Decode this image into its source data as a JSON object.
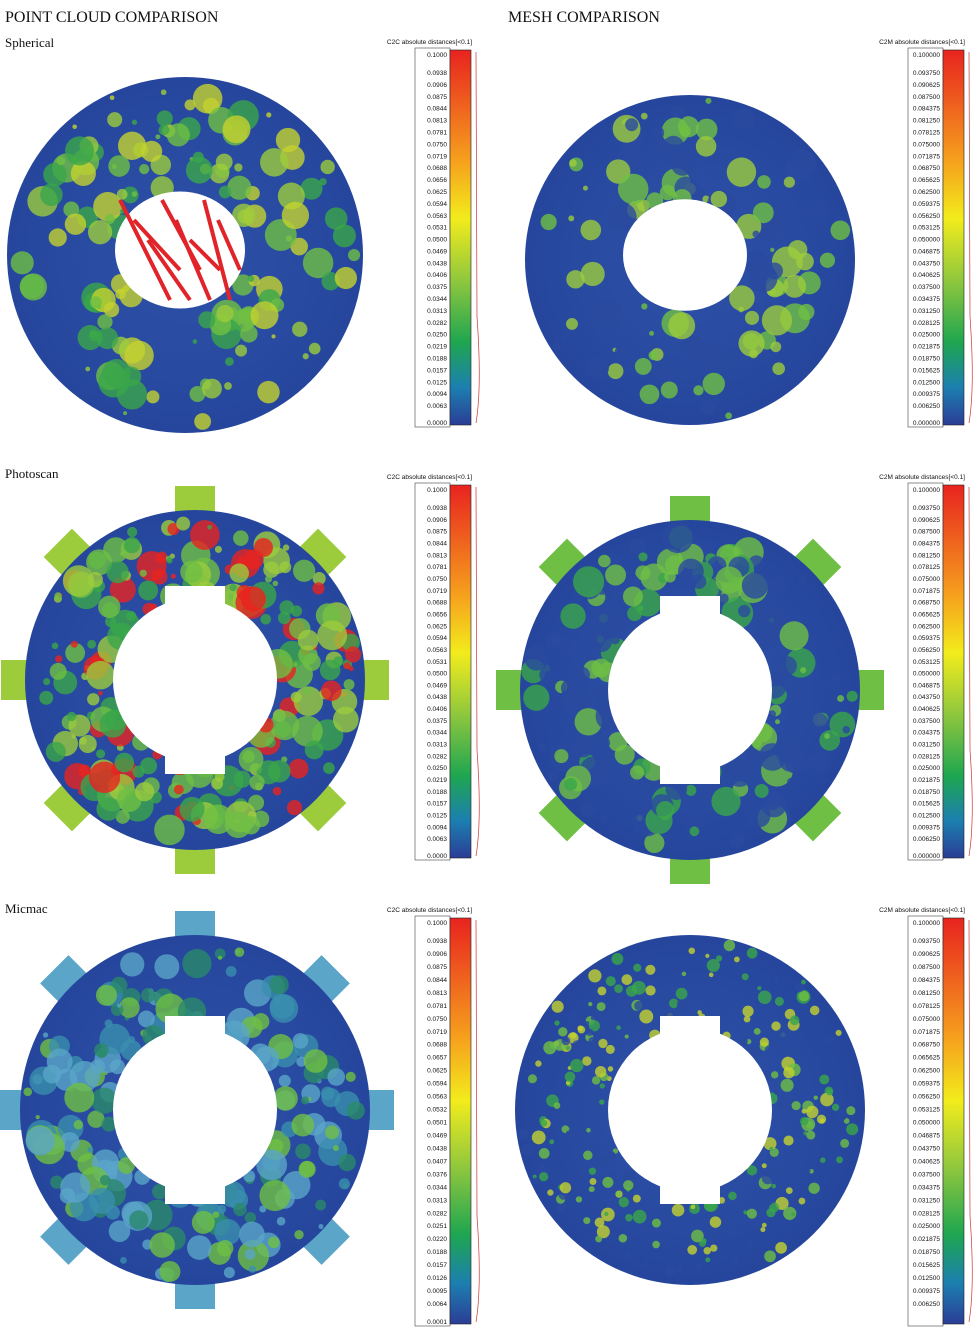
{
  "header": {
    "left_title": "POINT CLOUD COMPARISON",
    "right_title": "MESH COMPARISON"
  },
  "rows": [
    {
      "label": "Spherical",
      "panels": [
        {
          "scale_title": "C2C absolute distances[<0.1]",
          "ticks": [
            "0.1000",
            "0.0938",
            "0.0906",
            "0.0875",
            "0.0844",
            "0.0813",
            "0.0781",
            "0.0750",
            "0.0719",
            "0.0688",
            "0.0656",
            "0.0625",
            "0.0594",
            "0.0563",
            "0.0531",
            "0.0500",
            "0.0469",
            "0.0438",
            "0.0406",
            "0.0375",
            "0.0344",
            "0.0313",
            "0.0282",
            "0.0250",
            "0.0219",
            "0.0188",
            "0.0157",
            "0.0125",
            "0.0094",
            "0.0063",
            "0.0000"
          ]
        },
        {
          "scale_title": "C2M absolute distances[<0.1]",
          "ticks": [
            "0.100000",
            "0.093750",
            "0.090625",
            "0.087500",
            "0.084375",
            "0.081250",
            "0.078125",
            "0.075000",
            "0.071875",
            "0.068750",
            "0.065625",
            "0.062500",
            "0.059375",
            "0.056250",
            "0.053125",
            "0.050000",
            "0.046875",
            "0.043750",
            "0.040625",
            "0.037500",
            "0.034375",
            "0.031250",
            "0.028125",
            "0.025000",
            "0.021875",
            "0.018750",
            "0.015625",
            "0.012500",
            "0.009375",
            "0.006250",
            "0.000000"
          ]
        }
      ]
    },
    {
      "label": "Photoscan",
      "panels": [
        {
          "scale_title": "C2C absolute distances[<0.1]",
          "ticks": [
            "0.1000",
            "0.0938",
            "0.0906",
            "0.0875",
            "0.0844",
            "0.0813",
            "0.0781",
            "0.0750",
            "0.0719",
            "0.0688",
            "0.0656",
            "0.0625",
            "0.0594",
            "0.0563",
            "0.0531",
            "0.0500",
            "0.0469",
            "0.0438",
            "0.0406",
            "0.0375",
            "0.0344",
            "0.0313",
            "0.0282",
            "0.0250",
            "0.0219",
            "0.0188",
            "0.0157",
            "0.0125",
            "0.0094",
            "0.0063",
            "0.0000"
          ]
        },
        {
          "scale_title": "C2M absolute distances[<0.1]",
          "ticks": [
            "0.100000",
            "0.093750",
            "0.090625",
            "0.087500",
            "0.084375",
            "0.081250",
            "0.078125",
            "0.075000",
            "0.071875",
            "0.068750",
            "0.065625",
            "0.062500",
            "0.059375",
            "0.056250",
            "0.053125",
            "0.050000",
            "0.046875",
            "0.043750",
            "0.040625",
            "0.037500",
            "0.034375",
            "0.031250",
            "0.028125",
            "0.025000",
            "0.021875",
            "0.018750",
            "0.015625",
            "0.012500",
            "0.009375",
            "0.006250",
            "0.000000"
          ]
        }
      ]
    },
    {
      "label": "Micmac",
      "panels": [
        {
          "scale_title": "C2C absolute distances[<0.1]",
          "ticks": [
            "0.1000",
            "0.0938",
            "0.0906",
            "0.0875",
            "0.0844",
            "0.0813",
            "0.0781",
            "0.0750",
            "0.0719",
            "0.0688",
            "0.0657",
            "0.0625",
            "0.0594",
            "0.0563",
            "0.0532",
            "0.0501",
            "0.0469",
            "0.0438",
            "0.0407",
            "0.0376",
            "0.0344",
            "0.0313",
            "0.0282",
            "0.0251",
            "0.0220",
            "0.0188",
            "0.0157",
            "0.0126",
            "0.0095",
            "0.0064",
            "0.0001"
          ]
        },
        {
          "scale_title": "C2M absolute distances[<0.1]",
          "ticks": [
            "0.100000",
            "0.093750",
            "0.090625",
            "0.087500",
            "0.084375",
            "0.081250",
            "0.078125",
            "0.075000",
            "0.071875",
            "0.068750",
            "0.065625",
            "0.062500",
            "0.059375",
            "0.056250",
            "0.053125",
            "0.050000",
            "0.046875",
            "0.043750",
            "0.040625",
            "0.037500",
            "0.034375",
            "0.031250",
            "0.028125",
            "0.025000",
            "0.021875",
            "0.018750",
            "0.015625",
            "0.012500",
            "0.009375",
            "0.006250"
          ]
        }
      ]
    }
  ]
}
